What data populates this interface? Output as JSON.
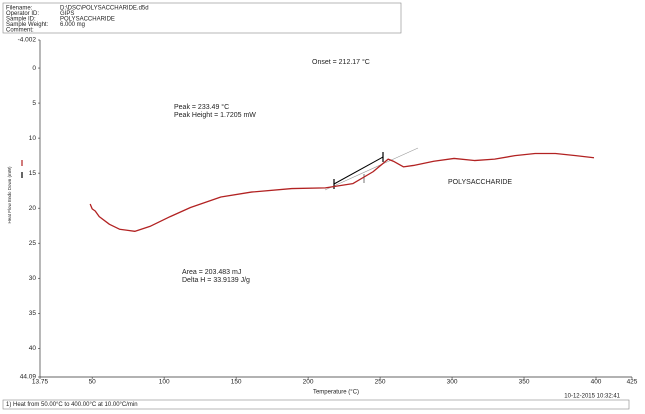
{
  "header": {
    "fields": [
      {
        "label": "Filename:",
        "value": "D:\\DSC\\POLYSACCHARIDE.d5d"
      },
      {
        "label": "Operator ID:",
        "value": "GIPS"
      },
      {
        "label": "Sample ID:",
        "value": "POLYSACCHARIDE"
      },
      {
        "label": "Sample Weight:",
        "value": "6.000 mg"
      },
      {
        "label": "Comment:",
        "value": ""
      }
    ]
  },
  "chart_data": {
    "type": "line",
    "xlabel": "Temperature (°C)",
    "ylabel": "Heat Flow Endo Down (mW)",
    "x": [
      48.6,
      50,
      52.1,
      54.9,
      62,
      69,
      79.6,
      90.1,
      104.2,
      118.3,
      139.4,
      160.6,
      188.7,
      212,
      231,
      245.1,
      252.1,
      255.6,
      259.2,
      266.2,
      273.2,
      287.3,
      301.4,
      315.5,
      329.6,
      343.7,
      357.7,
      371.8,
      385.9,
      398.6
    ],
    "series": [
      {
        "name": "POLYSACCHARIDE",
        "color": "#b22222",
        "values": [
          19.4,
          20.1,
          20.4,
          21.2,
          22.3,
          23.0,
          23.3,
          22.6,
          21.2,
          19.9,
          18.4,
          17.7,
          17.2,
          17.1,
          16.5,
          14.8,
          13.6,
          13.0,
          13.3,
          14.1,
          13.9,
          13.3,
          12.9,
          13.2,
          13.0,
          12.5,
          12.2,
          12.2,
          12.5,
          12.8
        ]
      }
    ],
    "xlim": [
      13.75,
      425
    ],
    "xticks": [
      13.75,
      50,
      100,
      150,
      200,
      250,
      300,
      350,
      400,
      425
    ],
    "ylim": [
      -4.002,
      44.09
    ],
    "y_inverted": true,
    "yticks": [
      -4.002,
      0,
      5,
      10,
      15,
      20,
      25,
      30,
      35,
      40,
      44.09
    ],
    "grid": false,
    "annotations": [
      "Onset = 212.17 °C",
      "Peak = 233.49 °C",
      "Peak Height = 1.7205 mW",
      "Area = 203.483 mJ",
      "Delta H = 33.9139 J/g"
    ]
  },
  "footer": {
    "timestamp": "10-12-2015 10:32:41",
    "method": "1)  Heat from 50.00°C to 400.00°C at 10.00°C/min"
  }
}
